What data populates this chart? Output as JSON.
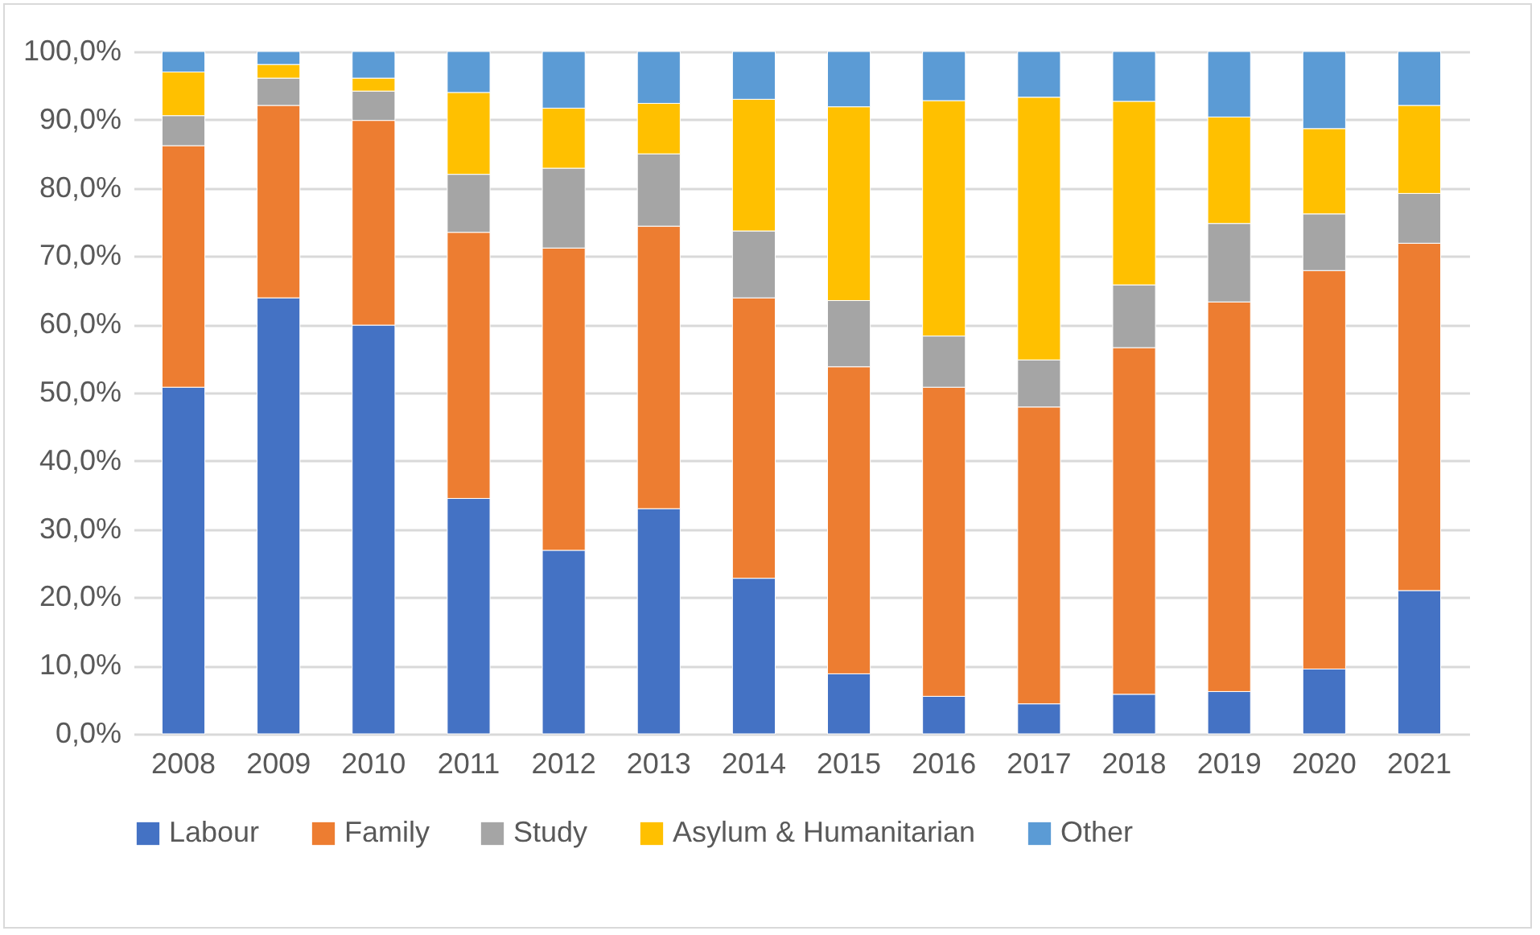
{
  "chart_data": {
    "type": "bar",
    "stacked": true,
    "categories": [
      "2008",
      "2009",
      "2010",
      "2011",
      "2012",
      "2013",
      "2014",
      "2015",
      "2016",
      "2017",
      "2018",
      "2019",
      "2020",
      "2021"
    ],
    "series": [
      {
        "name": "Labour",
        "color": "#4472c4",
        "values": [
          50.8,
          63.9,
          59.9,
          34.5,
          26.9,
          33.0,
          22.8,
          8.8,
          5.5,
          4.4,
          5.8,
          6.2,
          9.5,
          21.0
        ]
      },
      {
        "name": "Family",
        "color": "#ed7d31",
        "values": [
          35.4,
          28.2,
          30.0,
          39.0,
          44.3,
          41.4,
          41.1,
          45.0,
          45.3,
          43.5,
          50.8,
          57.1,
          58.4,
          50.9
        ]
      },
      {
        "name": "Study",
        "color": "#a5a5a5",
        "values": [
          4.4,
          4.0,
          4.3,
          8.5,
          11.7,
          10.6,
          9.8,
          9.7,
          7.5,
          6.9,
          9.2,
          11.5,
          8.3,
          7.3
        ]
      },
      {
        "name": "Asylum & Humanitarian",
        "color": "#ffc000",
        "values": [
          6.4,
          2.0,
          1.9,
          12.0,
          8.8,
          7.4,
          19.3,
          28.4,
          34.5,
          38.5,
          26.9,
          15.6,
          12.5,
          12.9
        ]
      },
      {
        "name": "Other",
        "color": "#5b9bd5",
        "values": [
          3.0,
          1.9,
          3.9,
          6.0,
          8.3,
          7.6,
          7.0,
          8.1,
          7.2,
          6.7,
          7.3,
          9.6,
          11.3,
          7.9
        ]
      }
    ],
    "ylim": [
      0,
      100
    ],
    "yticks": [
      {
        "value": 0,
        "label": "0,0%"
      },
      {
        "value": 10,
        "label": "10,0%"
      },
      {
        "value": 20,
        "label": "20,0%"
      },
      {
        "value": 30,
        "label": "30,0%"
      },
      {
        "value": 40,
        "label": "40,0%"
      },
      {
        "value": 50,
        "label": "50,0%"
      },
      {
        "value": 60,
        "label": "60,0%"
      },
      {
        "value": 70,
        "label": "70,0%"
      },
      {
        "value": 80,
        "label": "80,0%"
      },
      {
        "value": 90,
        "label": "90,0%"
      },
      {
        "value": 100,
        "label": "100,0%"
      }
    ],
    "grid": "y",
    "legend": "bottom"
  }
}
